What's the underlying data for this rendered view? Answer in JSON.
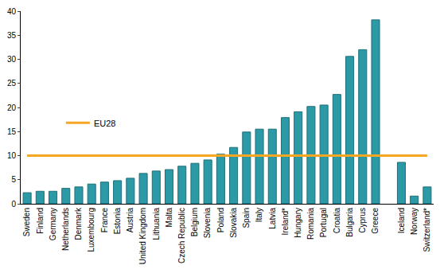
{
  "chart_data": {
    "type": "bar",
    "categories": [
      "Sweden",
      "Finland",
      "Germany",
      "Netherlands",
      "Denmark",
      "Luxembourg",
      "France",
      "Estonia",
      "Austria",
      "United Kingdom",
      "Lithuania",
      "Malta",
      "Czech Republic",
      "Belgium",
      "Slovenia",
      "Poland",
      "Slovakia",
      "Spain",
      "Italy",
      "Latvia",
      "Ireland*",
      "Hungary",
      "Romania",
      "Portugal",
      "Croatia",
      "Bulgaria",
      "Cyprus",
      "Greece",
      null,
      "Iceland",
      "Norway",
      "Switzerland*"
    ],
    "series": [
      {
        "type": "bar",
        "color": "#2b9aa6",
        "values": [
          2.3,
          2.6,
          2.6,
          3.2,
          3.5,
          4.1,
          4.5,
          4.8,
          5.3,
          6.3,
          6.8,
          7.1,
          7.8,
          8.4,
          9.1,
          10.3,
          11.7,
          14.9,
          15.5,
          15.5,
          17.9,
          19.1,
          20.2,
          20.5,
          22.7,
          30.6,
          32.0,
          38.2,
          null,
          8.6,
          1.6,
          3.5
        ]
      },
      {
        "name": "EU28",
        "type": "line",
        "color": "#f5a623",
        "values": [
          10,
          10,
          10,
          10,
          10,
          10,
          10,
          10,
          10,
          10,
          10,
          10,
          10,
          10,
          10,
          10,
          10,
          10,
          10,
          10,
          10,
          10,
          10,
          10,
          10,
          10,
          10,
          10,
          10,
          10,
          10,
          10
        ]
      }
    ],
    "ylim": [
      0,
      40
    ],
    "yticks": [
      0,
      5,
      10,
      15,
      20,
      25,
      30,
      35,
      40
    ],
    "grid": false,
    "legend": "left"
  }
}
